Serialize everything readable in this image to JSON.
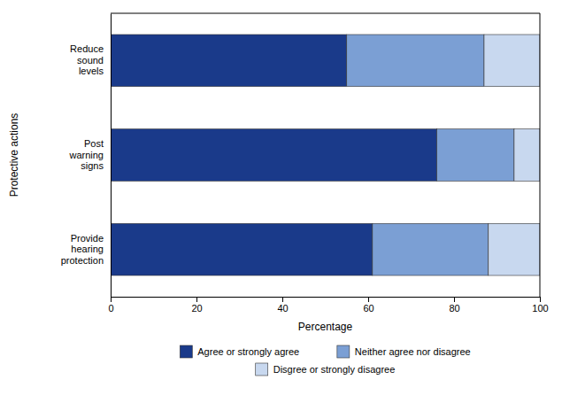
{
  "chart_data": {
    "type": "bar",
    "orientation": "horizontal",
    "stacked": true,
    "categories": [
      "Provide\nhearing\nprotection",
      "Post\nwarning\nsigns",
      "Reduce\nsound\nlevels"
    ],
    "series": [
      {
        "name": "Agree or strongly agree",
        "color": "#1a3a8a",
        "values": [
          61,
          76,
          55
        ]
      },
      {
        "name": "Neither agree nor disagree",
        "color": "#7b9fd4",
        "values": [
          27,
          18,
          32
        ]
      },
      {
        "name": "Disgree or strongly disagree",
        "color": "#c8d8ef",
        "values": [
          12,
          6,
          13
        ]
      }
    ],
    "xlabel": "Percentage",
    "ylabel": "Protective actions",
    "xlim": [
      0,
      100
    ],
    "xticks": [
      0,
      20,
      40,
      60,
      80,
      100
    ],
    "grid": false,
    "legend": "bottom"
  }
}
